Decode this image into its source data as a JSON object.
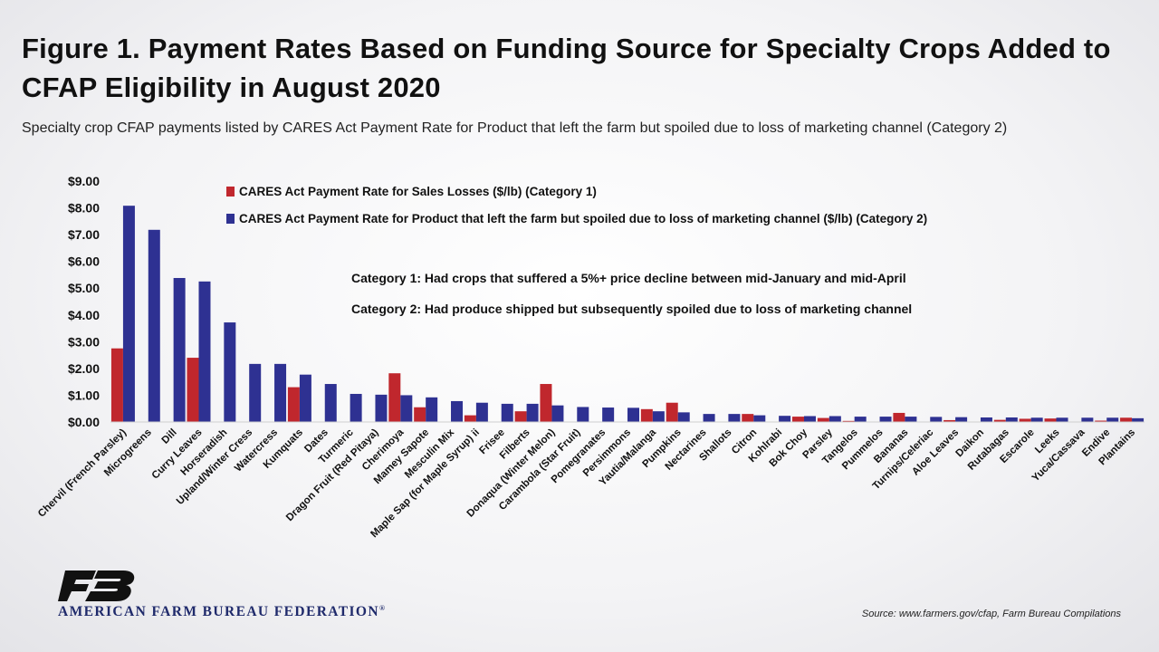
{
  "title": "Figure 1. Payment Rates Based on Funding Source for Specialty Crops Added to CFAP Eligibility in August 2020",
  "subtitle": "Specialty crop CFAP payments listed by CARES Act Payment Rate for Product that left the farm but spoiled due to loss of marketing channel (Category 2)",
  "source": "Source: www.farmers.gov/cfap, Farm Bureau Compilations",
  "logo": {
    "org_name": "AMERICAN FARM BUREAU FEDERATION",
    "registered_mark": "®",
    "icon": "fb-logo-icon",
    "color": "#1f2a6b"
  },
  "chart_data": {
    "type": "bar",
    "yaxis": {
      "min": 0,
      "max": 9,
      "step": 1,
      "tick_labels": [
        "$0.00",
        "$1.00",
        "$2.00",
        "$3.00",
        "$4.00",
        "$5.00",
        "$6.00",
        "$7.00",
        "$8.00",
        "$9.00"
      ]
    },
    "grid": false,
    "legend_position": "top",
    "categories": [
      "Chervil (French Parsley)",
      "Microgreens",
      "Dill",
      "Curry Leaves",
      "Horseradish",
      "Upland/Winter Cress",
      "Watercress",
      "Kumquats",
      "Dates",
      "Turmeric",
      "Dragon Fruit (Red Pitaya)",
      "Cherimoya",
      "Mamey Sapote",
      "Mesculin Mix",
      "Maple Sap (for Maple Syrup) ii",
      "Frisee",
      "Filberts",
      "Donaqua (Winter Melon)",
      "Carambola (Star Fruit)",
      "Pomegranates",
      "Persimmons",
      "Yautia/Malanga",
      "Pumpkins",
      "Nectarines",
      "Shallots",
      "Citron",
      "Kohlrabi",
      "Bok Choy",
      "Parsley",
      "Tangelos",
      "Pummelos",
      "Bananas",
      "Turnips/Celeriac",
      "Aloe Leaves",
      "Daikon",
      "Rutabagas",
      "Escarole",
      "Leeks",
      "Yuca/Cassava",
      "Endive",
      "Plantains"
    ],
    "series": [
      {
        "name": "CARES Act Payment Rate for Sales Losses ($/lb) (Category 1)",
        "color": "#c0272d",
        "values": [
          2.75,
          null,
          null,
          2.4,
          null,
          null,
          null,
          1.3,
          null,
          null,
          null,
          1.82,
          0.55,
          null,
          0.25,
          null,
          0.4,
          1.42,
          null,
          null,
          null,
          0.48,
          0.72,
          null,
          null,
          0.3,
          null,
          0.2,
          0.15,
          0.04,
          null,
          0.34,
          null,
          0.07,
          null,
          0.08,
          0.12,
          0.13,
          null,
          0.05,
          0.16
        ]
      },
      {
        "name": "CARES Act Payment Rate for Product that left the farm but spoiled due to loss of marketing channel ($/lb) (Category 2)",
        "color": "#2e3192",
        "values": [
          8.08,
          7.18,
          5.38,
          5.25,
          3.72,
          2.17,
          2.17,
          1.77,
          1.42,
          1.05,
          1.02,
          1.0,
          0.92,
          0.78,
          0.72,
          0.68,
          0.68,
          0.62,
          0.56,
          0.54,
          0.53,
          0.4,
          0.36,
          0.3,
          0.3,
          0.25,
          0.23,
          0.22,
          0.22,
          0.2,
          0.2,
          0.2,
          0.19,
          0.18,
          0.17,
          0.17,
          0.16,
          0.16,
          0.16,
          0.16,
          0.14
        ]
      }
    ],
    "annotations": [
      "Category 1: Had crops that suffered a 5%+ price decline between mid-January and mid-April",
      "Category 2: Had produce shipped but subsequently spoiled due to loss of marketing channel"
    ]
  }
}
